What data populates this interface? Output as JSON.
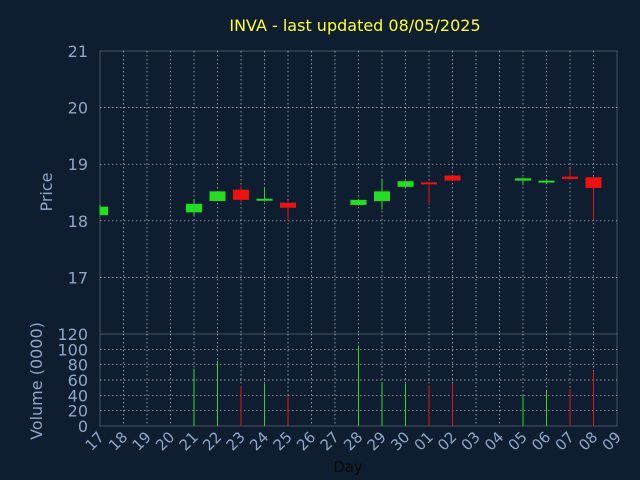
{
  "chart_data": {
    "type": "candlestick",
    "title": "INVA - last updated 08/05/2025",
    "xlabel": "Day",
    "ylabel_price": "Price",
    "ylabel_volume": "Volume (0000)",
    "x_ticks": [
      "17",
      "18",
      "19",
      "20",
      "21",
      "22",
      "23",
      "24",
      "25",
      "26",
      "27",
      "28",
      "29",
      "30",
      "01",
      "02",
      "03",
      "04",
      "05",
      "06",
      "07",
      "08",
      "09"
    ],
    "price_ylim": [
      16.0,
      21.0
    ],
    "price_yticks": [
      17,
      18,
      19,
      20,
      21
    ],
    "volume_ylim": [
      0,
      120
    ],
    "volume_yticks": [
      0,
      20,
      40,
      60,
      80,
      100,
      120
    ],
    "grid": true,
    "colors": {
      "background": "#0e1e30",
      "axes": "#4a5260",
      "grid": "#ffffff",
      "title": "#ffff33",
      "labels": "#8fa6c8",
      "up": "#22dd22",
      "down": "#ee1111"
    },
    "candles": [
      {
        "day": "17",
        "open": 18.1,
        "high": 18.28,
        "low": 18.1,
        "close": 18.25,
        "volume": 0
      },
      {
        "day": "21",
        "open": 18.15,
        "high": 18.38,
        "low": 18.08,
        "close": 18.3,
        "volume": 75
      },
      {
        "day": "22",
        "open": 18.35,
        "high": 18.52,
        "low": 18.35,
        "close": 18.52,
        "volume": 85
      },
      {
        "day": "23",
        "open": 18.55,
        "high": 18.62,
        "low": 18.33,
        "close": 18.37,
        "volume": 52
      },
      {
        "day": "24",
        "open": 18.36,
        "high": 18.57,
        "low": 18.34,
        "close": 18.39,
        "volume": 55
      },
      {
        "day": "25",
        "open": 18.32,
        "high": 18.32,
        "low": 18.0,
        "close": 18.23,
        "volume": 40
      },
      {
        "day": "28",
        "open": 18.28,
        "high": 18.37,
        "low": 18.27,
        "close": 18.37,
        "volume": 105
      },
      {
        "day": "29",
        "open": 18.35,
        "high": 18.75,
        "low": 18.2,
        "close": 18.52,
        "volume": 57
      },
      {
        "day": "30",
        "open": 18.6,
        "high": 18.7,
        "low": 18.6,
        "close": 18.7,
        "volume": 55
      },
      {
        "day": "01",
        "open": 18.68,
        "high": 18.68,
        "low": 18.3,
        "close": 18.66,
        "volume": 53
      },
      {
        "day": "02",
        "open": 18.8,
        "high": 18.8,
        "low": 18.7,
        "close": 18.71,
        "volume": 55
      },
      {
        "day": "05",
        "open": 18.71,
        "high": 18.76,
        "low": 18.63,
        "close": 18.75,
        "volume": 40
      },
      {
        "day": "06",
        "open": 18.69,
        "high": 18.73,
        "low": 18.65,
        "close": 18.71,
        "volume": 45
      },
      {
        "day": "07",
        "open": 18.78,
        "high": 18.92,
        "low": 18.71,
        "close": 18.74,
        "volume": 48
      },
      {
        "day": "08",
        "open": 18.77,
        "high": 18.77,
        "low": 18.02,
        "close": 18.58,
        "volume": 72
      }
    ]
  }
}
